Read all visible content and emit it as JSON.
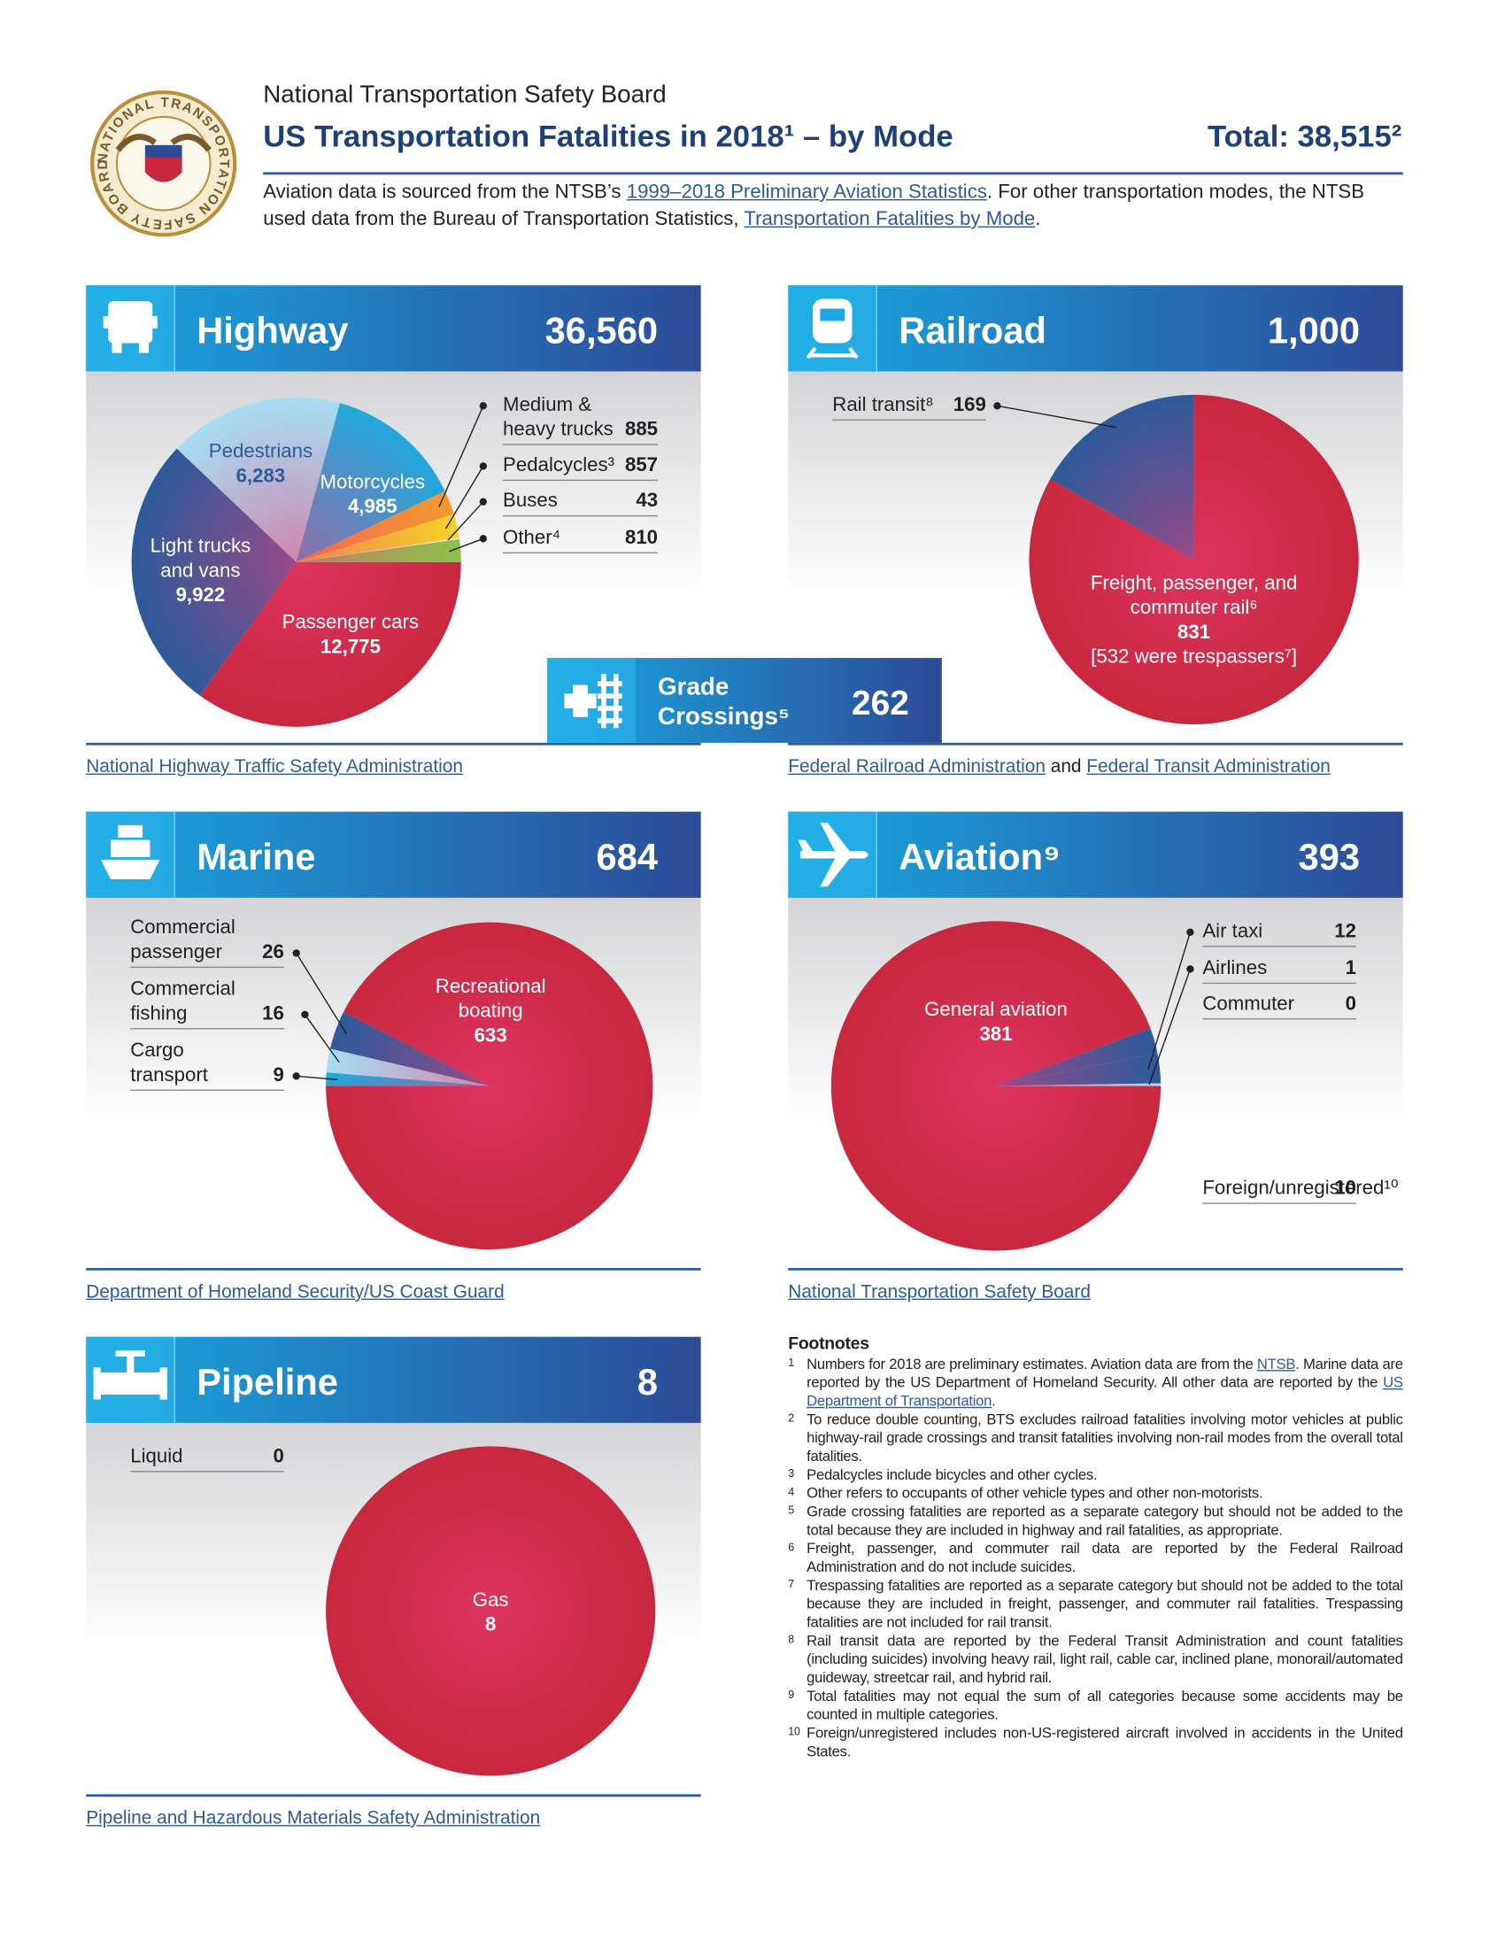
{
  "header": {
    "seal_text": "NATIONAL TRANSPORTATION SAFETY BOARD",
    "org": "National Transportation Safety Board",
    "title": "US Transportation Fatalities in 2018¹ – by Mode",
    "total": "Total: 38,515²",
    "intro": [
      {
        "text": "Aviation data is sourced from the NTSB’s ",
        "link": false
      },
      {
        "text": "1999–2018 Preliminary Aviation Statistics",
        "link": true
      },
      {
        "text": ". For other transportation modes, the NTSB used data from the Bureau of Transportation Statistics, ",
        "link": false
      },
      {
        "text": "Transportation Fatalities by Mode",
        "link": true
      },
      {
        "text": ".",
        "link": false
      }
    ]
  },
  "chart_data": [
    {
      "type": "pie",
      "title": "Highway",
      "total": "36,560",
      "categories": [
        "Passenger cars",
        "Light trucks and vans",
        "Pedestrians",
        "Motorcycles",
        "Medium & heavy trucks",
        "Pedalcycles³",
        "Buses",
        "Other⁴"
      ],
      "values": [
        12775,
        9922,
        6283,
        4985,
        885,
        857,
        43,
        810
      ],
      "value_labels": [
        "12,775",
        "9,922",
        "6,283",
        "4,985",
        "885",
        "857",
        "43",
        "810"
      ],
      "colors": [
        "#c8283f",
        "#2d5a9a",
        "#a8def2",
        "#22a7dc",
        "#f39a2c",
        "#f6d326",
        "#f2f2f2",
        "#8cc34a"
      ],
      "source": [
        {
          "text": "National Highway Traffic Safety Administration",
          "link": true
        }
      ]
    },
    {
      "type": "pie",
      "title": "Railroad",
      "total": "1,000",
      "categories": [
        "Freight, passenger, and commuter rail⁶",
        "Rail transit⁸"
      ],
      "values": [
        831,
        169
      ],
      "annotation": "[532 were trespassers⁷]",
      "colors": [
        "#c8283f",
        "#2d5a9a"
      ],
      "source": [
        {
          "text": "Federal Railroad Administration",
          "link": true
        },
        {
          "text": " and ",
          "link": false
        },
        {
          "text": "Federal Transit Administration",
          "link": true
        }
      ]
    },
    {
      "type": "pie",
      "title": "Marine",
      "total": "684",
      "categories": [
        "Cargo transport",
        "Commercial fishing",
        "Commercial passenger",
        "Recreational boating"
      ],
      "values": [
        9,
        16,
        26,
        633
      ],
      "colors": [
        "#22a7dc",
        "#a8def2",
        "#2d5a9a",
        "#c8283f"
      ],
      "source": [
        {
          "text": "Department of Homeland Security/US Coast Guard",
          "link": true
        }
      ]
    },
    {
      "type": "pie",
      "title": "Aviation⁹",
      "total": "393",
      "categories": [
        "General aviation",
        "Foreign/unregistered¹⁰",
        "Air taxi",
        "Airlines",
        "Commuter"
      ],
      "values": [
        381,
        10,
        12,
        1,
        0
      ],
      "colors": [
        "#c8283f",
        "#2d5a9a",
        "#2d5a9a",
        "#a8def2",
        "#22a7dc"
      ],
      "source": [
        {
          "text": "National Transportation Safety Board",
          "link": true
        }
      ]
    },
    {
      "type": "pie",
      "title": "Pipeline",
      "total": "8",
      "categories": [
        "Gas",
        "Liquid"
      ],
      "values": [
        8,
        0
      ],
      "colors": [
        "#c8283f",
        "#2d5a9a"
      ],
      "source": [
        {
          "text": "Pipeline and Hazardous Materials Safety Administration",
          "link": true
        }
      ]
    }
  ],
  "grade_crossings": {
    "title": "Grade Crossings⁵",
    "total": "262"
  },
  "footnotes": {
    "heading": "Footnotes",
    "items": [
      {
        "mark": "1",
        "parts": [
          {
            "text": "Numbers for 2018 are preliminary estimates. Aviation data are from the ",
            "link": false
          },
          {
            "text": "NTSB",
            "link": true
          },
          {
            "text": ". Marine data are reported by the US Department of Homeland Security. All other data are reported by the ",
            "link": false
          },
          {
            "text": "US Department of Transportation",
            "link": true
          },
          {
            "text": ".",
            "link": false
          }
        ]
      },
      {
        "mark": "2",
        "parts": [
          {
            "text": "To reduce double counting, BTS excludes railroad fatalities involving motor vehicles at public highway-rail grade crossings and transit fatalities involving non-rail modes from the overall total fatalities.",
            "link": false
          }
        ]
      },
      {
        "mark": "3",
        "parts": [
          {
            "text": "Pedalcycles include bicycles and other cycles.",
            "link": false
          }
        ]
      },
      {
        "mark": "4",
        "parts": [
          {
            "text": "Other refers to occupants of other vehicle types and other non-motorists.",
            "link": false
          }
        ]
      },
      {
        "mark": "5",
        "parts": [
          {
            "text": "Grade crossing fatalities are reported as a separate category but should not be added to the total because they are included in highway and rail fatalities, as appropriate.",
            "link": false
          }
        ]
      },
      {
        "mark": "6",
        "parts": [
          {
            "text": "Freight, passenger, and commuter rail data are reported by the Federal Railroad Administration and do not include suicides.",
            "link": false
          }
        ]
      },
      {
        "mark": "7",
        "parts": [
          {
            "text": "Trespassing fatalities are reported as a separate category but should not be added to the total because they are included in freight, passenger, and commuter rail fatalities. Trespassing fatalities are not included for rail transit.",
            "link": false
          }
        ]
      },
      {
        "mark": "8",
        "parts": [
          {
            "text": "Rail transit data are reported by the Federal Transit Administration and count fatalities (including suicides) involving heavy rail, light rail, cable car, inclined plane, monorail/automated guideway, streetcar rail, and hybrid rail.",
            "link": false
          }
        ]
      },
      {
        "mark": "9",
        "parts": [
          {
            "text": "Total fatalities may not equal the sum of all categories because some accidents may be counted in multiple categories.",
            "link": false
          }
        ]
      },
      {
        "mark": "10",
        "parts": [
          {
            "text": "Foreign/unregistered includes non-US-registered aircraft involved in accidents in the United States.",
            "link": false
          }
        ]
      }
    ]
  }
}
